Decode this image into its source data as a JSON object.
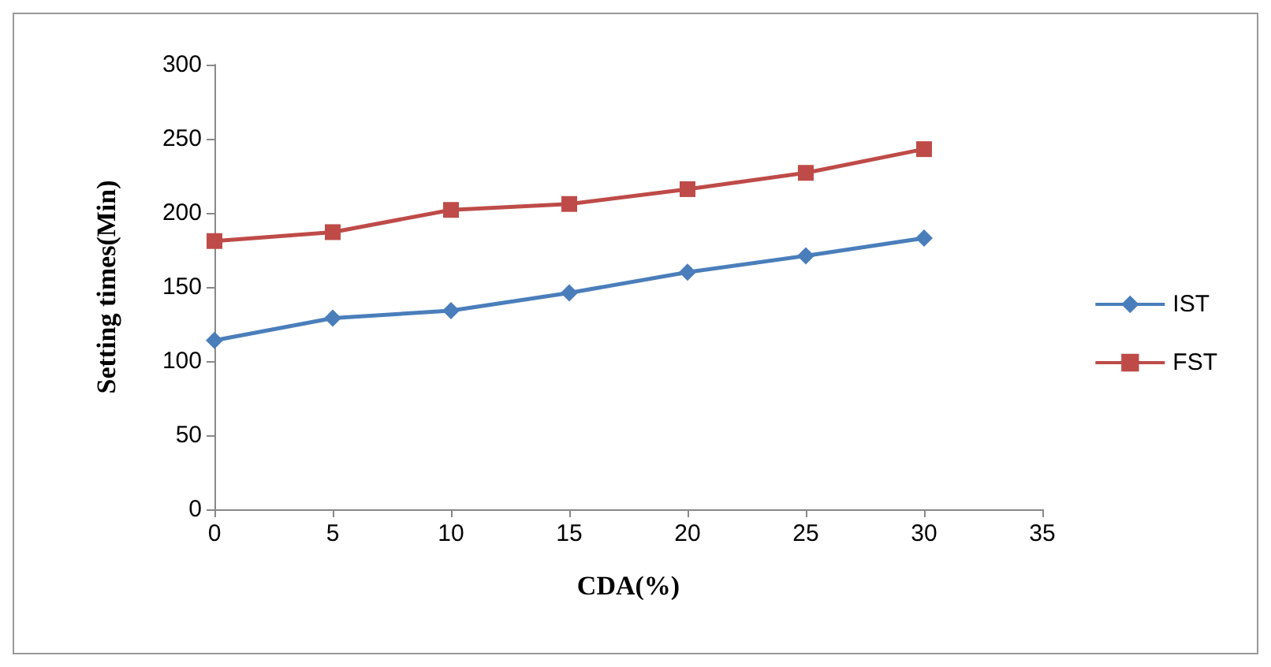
{
  "chart_data": {
    "type": "line",
    "xlabel": "CDA(%)",
    "ylabel": "Setting times(Min)",
    "x": [
      0,
      5,
      10,
      15,
      20,
      25,
      30
    ],
    "series": [
      {
        "name": "IST",
        "color": "#4a7ebb",
        "marker": "diamond",
        "values": [
          114,
          129,
          134,
          146,
          160,
          171,
          183
        ]
      },
      {
        "name": "FST",
        "color": "#be4b48",
        "marker": "square",
        "values": [
          181,
          187,
          202,
          206,
          216,
          227,
          243
        ]
      }
    ],
    "xlim": [
      0,
      35
    ],
    "xticks": [
      0,
      5,
      10,
      15,
      20,
      25,
      30,
      35
    ],
    "ylim": [
      0,
      300
    ],
    "yticks": [
      0,
      50,
      100,
      150,
      200,
      250,
      300
    ],
    "grid": false,
    "legend": "right"
  }
}
